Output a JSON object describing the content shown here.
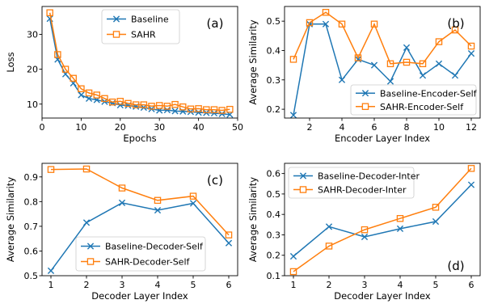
{
  "colors": {
    "baseline": "#1f77b4",
    "sahr": "#ff7f0e"
  },
  "chart_data": [
    {
      "type": "line",
      "panel_tag": "(a)",
      "xlabel": "Epochs",
      "ylabel": "Loss",
      "xlim": [
        0,
        50
      ],
      "ylim": [
        6,
        38
      ],
      "xticks": [
        0,
        10,
        20,
        30,
        40,
        50
      ],
      "yticks": [
        10,
        20,
        30
      ],
      "legend_loc": "upper-center",
      "x": [
        2,
        4,
        6,
        8,
        10,
        12,
        14,
        16,
        18,
        20,
        22,
        24,
        26,
        28,
        30,
        32,
        34,
        36,
        38,
        40,
        42,
        44,
        46,
        48
      ],
      "series": [
        {
          "name": "Baseline",
          "marker": "x",
          "color_key": "baseline",
          "values": [
            34.5,
            22.8,
            18.6,
            16.0,
            12.6,
            11.6,
            11.2,
            10.7,
            10.3,
            9.7,
            9.6,
            9.3,
            9.0,
            8.6,
            8.2,
            8.3,
            8.0,
            7.9,
            7.8,
            7.6,
            7.5,
            7.4,
            7.2,
            7.0
          ]
        },
        {
          "name": "SAHR",
          "marker": "square",
          "color_key": "sahr",
          "values": [
            36.2,
            24.2,
            20.0,
            17.4,
            14.4,
            13.2,
            12.6,
            11.6,
            10.6,
            10.8,
            10.2,
            9.8,
            9.8,
            9.4,
            9.6,
            9.4,
            9.9,
            9.2,
            8.6,
            8.7,
            8.4,
            8.4,
            8.2,
            8.5
          ]
        }
      ]
    },
    {
      "type": "line",
      "panel_tag": "(b)",
      "xlabel": "Encoder Layer Index",
      "ylabel": "Average Similarity",
      "xlim": [
        0.45,
        12.55
      ],
      "ylim": [
        0.17,
        0.55
      ],
      "xticks": [
        2,
        4,
        6,
        8,
        10,
        12
      ],
      "yticks": [
        0.2,
        0.3,
        0.4,
        0.5
      ],
      "legend_loc": "lower-right",
      "x": [
        1,
        2,
        3,
        4,
        5,
        6,
        7,
        8,
        9,
        10,
        11,
        12
      ],
      "series": [
        {
          "name": "Baseline-Encoder-Self",
          "marker": "x",
          "color_key": "baseline",
          "values": [
            0.18,
            0.49,
            0.49,
            0.3,
            0.37,
            0.35,
            0.295,
            0.41,
            0.315,
            0.355,
            0.315,
            0.39
          ]
        },
        {
          "name": "SAHR-Encoder-Self",
          "marker": "square",
          "color_key": "sahr",
          "values": [
            0.37,
            0.495,
            0.53,
            0.49,
            0.375,
            0.49,
            0.355,
            0.36,
            0.355,
            0.43,
            0.47,
            0.415
          ]
        }
      ]
    },
    {
      "type": "line",
      "panel_tag": "(c)",
      "xlabel": "Decoder Layer Index",
      "ylabel": "Average Similarity",
      "xlim": [
        0.75,
        6.25
      ],
      "ylim": [
        0.5,
        0.955
      ],
      "xticks": [
        1,
        2,
        3,
        4,
        5,
        6
      ],
      "yticks": [
        0.5,
        0.6,
        0.7,
        0.8,
        0.9
      ],
      "legend_loc": "lower-center",
      "x": [
        1,
        2,
        3,
        4,
        5,
        6
      ],
      "series": [
        {
          "name": "Baseline-Decoder-Self",
          "marker": "x",
          "color_key": "baseline",
          "values": [
            0.52,
            0.715,
            0.795,
            0.765,
            0.793,
            0.632
          ]
        },
        {
          "name": "SAHR-Decoder-Self",
          "marker": "square",
          "color_key": "sahr",
          "values": [
            0.93,
            0.932,
            0.855,
            0.805,
            0.822,
            0.665
          ]
        }
      ]
    },
    {
      "type": "line",
      "panel_tag": "(d)",
      "xlabel": "Decoder Layer Index",
      "ylabel": "Average Similarity",
      "xlim": [
        0.75,
        6.25
      ],
      "ylim": [
        0.1,
        0.65
      ],
      "xticks": [
        1,
        2,
        3,
        4,
        5,
        6
      ],
      "yticks": [
        0.1,
        0.2,
        0.3,
        0.4,
        0.5,
        0.6
      ],
      "legend_loc": "upper-left",
      "x": [
        1,
        2,
        3,
        4,
        5,
        6
      ],
      "series": [
        {
          "name": "Baseline-Decoder-Inter",
          "marker": "x",
          "color_key": "baseline",
          "values": [
            0.195,
            0.34,
            0.29,
            0.33,
            0.365,
            0.545
          ]
        },
        {
          "name": "SAHR-Decoder-Inter",
          "marker": "square",
          "color_key": "sahr",
          "values": [
            0.12,
            0.245,
            0.325,
            0.38,
            0.435,
            0.625
          ]
        }
      ]
    }
  ]
}
